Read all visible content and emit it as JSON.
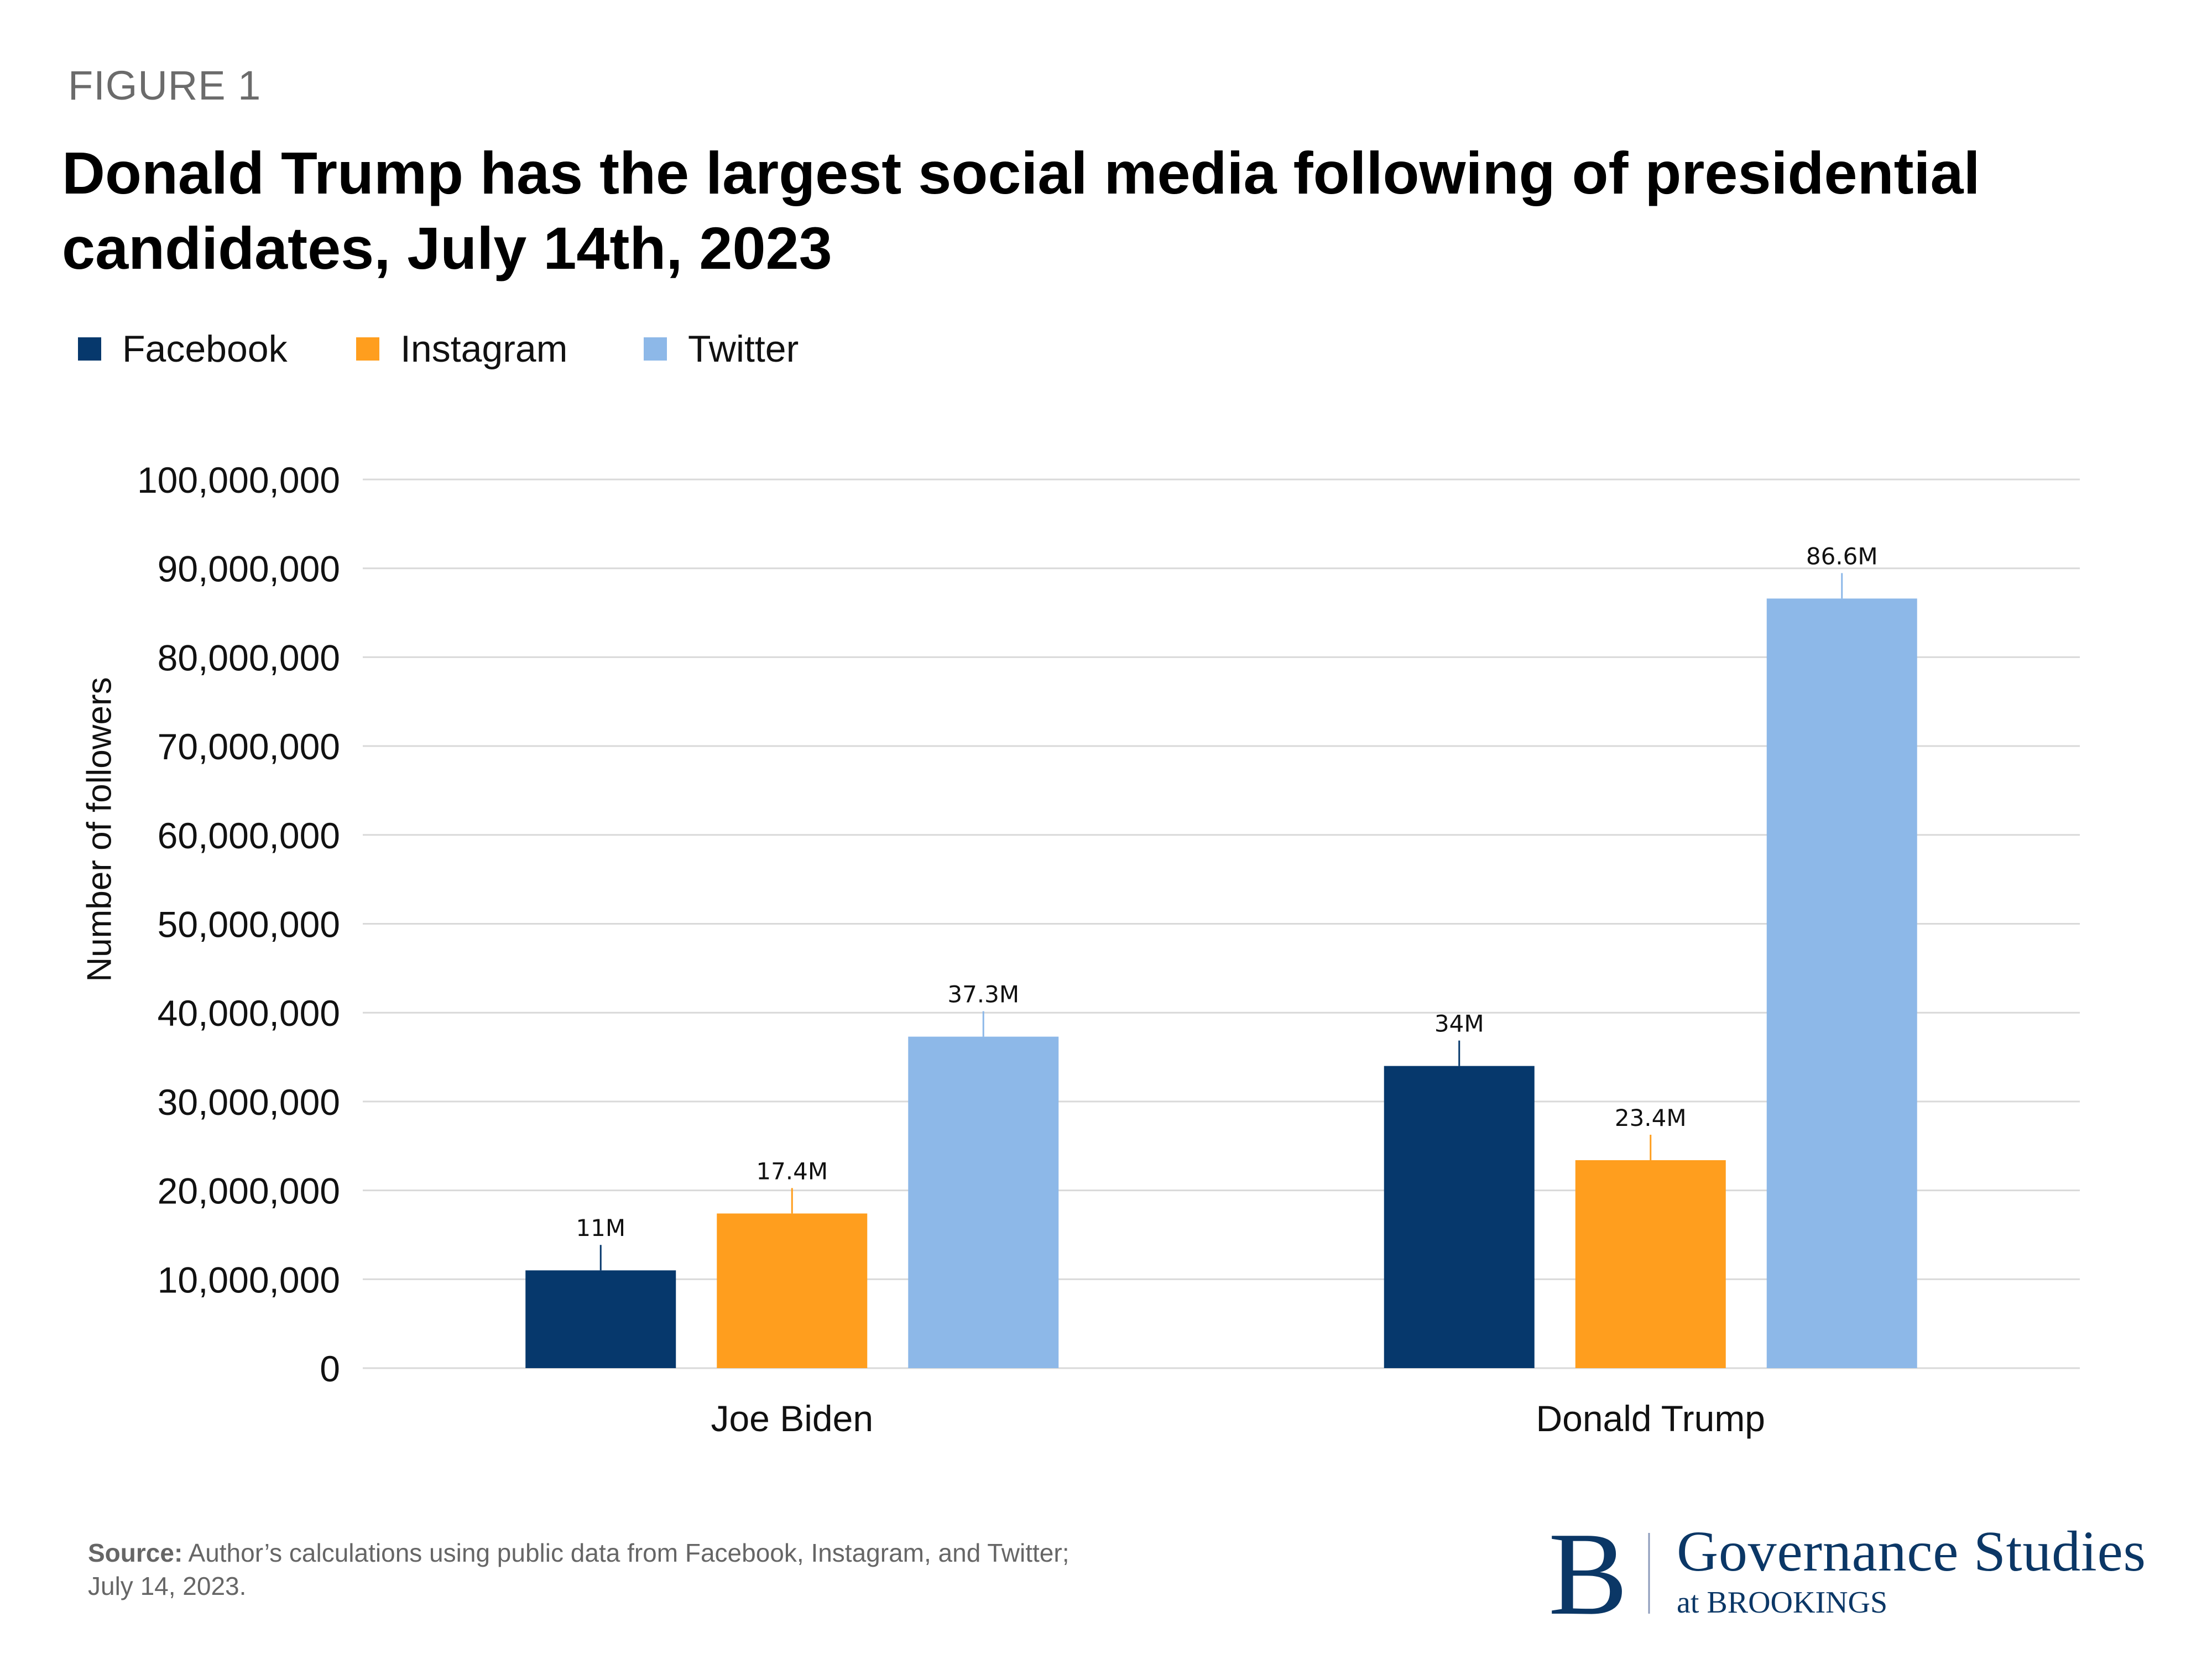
{
  "figure_label": "FIGURE 1",
  "title": "Donald Trump has the largest social media following of presidential candidates, July 14th, 2023",
  "source": {
    "label": "Source:",
    "text": "Author’s calculations using public data from Facebook, Instagram, and Twitter; July 14, 2023."
  },
  "logo": {
    "letter": "B",
    "name": "Governance Studies",
    "sub": "at BROOKINGS",
    "color": "#0B3766"
  },
  "chart_data": {
    "type": "bar",
    "title": "Donald Trump has the largest social media following of presidential candidates, July 14th, 2023",
    "xlabel": "",
    "ylabel": "Number of followers",
    "categories": [
      "Joe Biden",
      "Donald Trump"
    ],
    "series": [
      {
        "name": "Facebook",
        "color": "#06386C",
        "values": [
          11000000,
          34000000
        ],
        "labels": [
          "11M",
          "34M"
        ]
      },
      {
        "name": "Instagram",
        "color": "#FF9E1E",
        "values": [
          17400000,
          23400000
        ],
        "labels": [
          "17.4M",
          "23.4M"
        ]
      },
      {
        "name": "Twitter",
        "color": "#8DB8E8",
        "values": [
          37300000,
          86600000
        ],
        "labels": [
          "37.3M",
          "86.6M"
        ]
      }
    ],
    "ylim": [
      0,
      100000000
    ],
    "yticks": [
      0,
      10000000,
      20000000,
      30000000,
      40000000,
      50000000,
      60000000,
      70000000,
      80000000,
      90000000,
      100000000
    ],
    "ytick_labels": [
      "0",
      "10,000,000",
      "20,000,000",
      "30,000,000",
      "40,000,000",
      "50,000,000",
      "60,000,000",
      "70,000,000",
      "80,000,000",
      "90,000,000",
      "100,000,000"
    ],
    "grid": true,
    "legend": "top-left"
  }
}
